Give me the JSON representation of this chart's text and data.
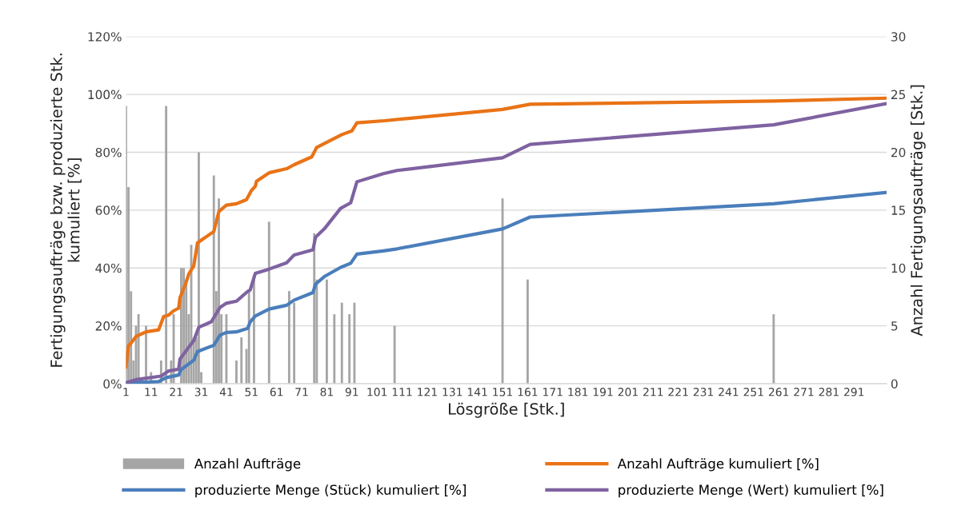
{
  "chart_data": {
    "type": "line",
    "xlabel": "Lösgröße [Stk.]",
    "ylabel": "Fertigungsaufträge bzw. produzierte Stk.\nkumuliert [%]",
    "y2label": "Anzahl Fertigungsaufträge [Stk.]",
    "xlim": [
      1,
      304
    ],
    "xticks": [
      1,
      11,
      21,
      31,
      41,
      51,
      61,
      71,
      81,
      91,
      101,
      111,
      121,
      131,
      141,
      151,
      161,
      171,
      181,
      191,
      201,
      211,
      221,
      231,
      241,
      251,
      261,
      271,
      281,
      291
    ],
    "ylim": [
      0,
      120
    ],
    "yticks": [
      {
        "value": 0,
        "label": "0%"
      },
      {
        "value": 20,
        "label": "20%"
      },
      {
        "value": 40,
        "label": "40%"
      },
      {
        "value": 60,
        "label": "60%"
      },
      {
        "value": 80,
        "label": "80%"
      },
      {
        "value": 100,
        "label": "100%"
      },
      {
        "value": 120,
        "label": "120%"
      }
    ],
    "y2lim": [
      0,
      30
    ],
    "y2ticks": [
      0,
      5,
      10,
      15,
      20,
      25,
      30
    ],
    "grid": "y",
    "legend": "bottom",
    "series": [
      {
        "name": "Anzahl Aufträge",
        "type": "bar",
        "axis": "y2",
        "color": "#a5a5a5",
        "x": [
          1,
          2,
          3,
          4,
          5,
          6,
          9,
          11,
          15,
          17,
          19,
          20,
          23,
          24,
          25,
          26,
          27,
          28,
          29,
          30,
          31,
          36,
          37,
          38,
          39,
          41,
          45,
          47,
          49,
          50,
          52,
          58,
          66,
          68,
          76,
          77,
          81,
          84,
          87,
          90,
          92,
          108,
          151,
          161,
          259
        ],
        "values": [
          24,
          17,
          8,
          2,
          5,
          6,
          5,
          1,
          2,
          24,
          2,
          6,
          10,
          10,
          9,
          6,
          12,
          4,
          4,
          20,
          1,
          18,
          8,
          16,
          6,
          6,
          2,
          4,
          3,
          8,
          9,
          14,
          8,
          7,
          13,
          9,
          9,
          6,
          7,
          6,
          7,
          5,
          16,
          9,
          6
        ]
      },
      {
        "name": "Anzahl Aufträge kumuliert [%]",
        "axis": "y",
        "color": "#e97316",
        "x": [
          1,
          2,
          3,
          5,
          9,
          14,
          16,
          18,
          20,
          22,
          22.5,
          25,
          26,
          28,
          29.5,
          36,
          38,
          41,
          45,
          49,
          51,
          52.5,
          53,
          58,
          65,
          68,
          75,
          77,
          87,
          91,
          93,
          104,
          151,
          162,
          259,
          304
        ],
        "values": [
          5.8,
          13.1,
          14.0,
          16.3,
          17.9,
          18.6,
          23.2,
          23.7,
          25.2,
          26.1,
          29.7,
          35.1,
          37.9,
          40.7,
          48.7,
          52.6,
          59.5,
          61.7,
          62.2,
          63.6,
          66.8,
          68.2,
          70.0,
          72.9,
          74.3,
          75.7,
          78.4,
          81.7,
          86.1,
          87.4,
          90.2,
          90.9,
          94.8,
          96.6,
          97.7,
          98.7
        ]
      },
      {
        "name": "produzierte Menge (Stück) kumuliert [%]",
        "axis": "y",
        "color": "#4a7ebb",
        "x": [
          1,
          14,
          17,
          22,
          23,
          28,
          29.5,
          36,
          38.5,
          41,
          45,
          49.5,
          50.5,
          52.5,
          58,
          65,
          68,
          75.5,
          76.5,
          80,
          86.5,
          90.5,
          93,
          103.5,
          109,
          151,
          162,
          259,
          304
        ],
        "values": [
          0.3,
          0.7,
          2.1,
          3.0,
          4.9,
          8.1,
          11.1,
          13.3,
          16.8,
          17.7,
          17.9,
          19.1,
          21.4,
          23.4,
          25.8,
          27.1,
          28.9,
          31.5,
          34.4,
          37.0,
          40.2,
          41.6,
          44.8,
          45.9,
          46.6,
          53.5,
          57.6,
          62.2,
          66.1
        ]
      },
      {
        "name": "produzierte Menge (Wert) kumuliert [%]",
        "axis": "y",
        "color": "#7f62a1",
        "x": [
          1,
          5,
          15,
          18,
          22,
          22.5,
          28,
          30,
          35,
          38.5,
          41,
          45,
          49.5,
          50.5,
          52.5,
          58,
          65,
          68,
          75.5,
          76.5,
          80,
          86.5,
          90.5,
          93,
          103.5,
          109,
          151,
          162,
          259,
          304
        ],
        "values": [
          0.3,
          1.4,
          2.6,
          4.4,
          5.0,
          8.5,
          14.9,
          19.5,
          21.4,
          26.4,
          27.8,
          28.5,
          31.9,
          32.4,
          38.1,
          39.6,
          41.8,
          44.5,
          46.3,
          50.6,
          53.5,
          60.6,
          62.5,
          69.8,
          72.6,
          73.7,
          78.1,
          82.7,
          89.5,
          96.8
        ]
      }
    ]
  }
}
